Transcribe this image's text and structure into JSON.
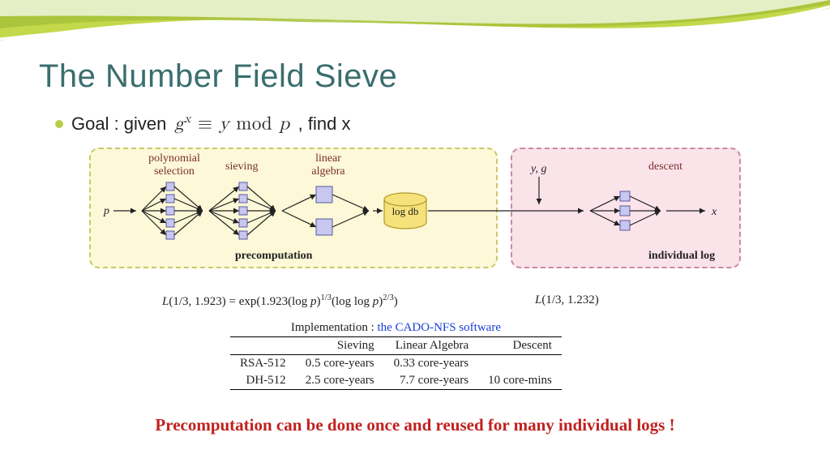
{
  "title": "The Number Field Sieve",
  "bullet": {
    "prefix": "Goal : given",
    "formula_html": "g<span class='sup'>x</span> <span class='op'>≡</span> y <span class='op'>mod</span> p",
    "suffix": ", find x"
  },
  "diagram": {
    "precomputation": {
      "bg": "#fdf8d7",
      "border": "#c9c96a",
      "footer": "precomputation",
      "input_label": "p",
      "stages": [
        {
          "label": "polynomial\nselection",
          "node_count": 5,
          "node_size": 10
        },
        {
          "label": "sieving",
          "node_count": 5,
          "node_size": 10
        },
        {
          "label": "linear\nalgebra",
          "node_count": 2,
          "node_size": 18
        }
      ],
      "db_label": "log db"
    },
    "descent": {
      "bg": "#fbe3ea",
      "border": "#c98a9f",
      "footer": "individual log",
      "label": "descent",
      "input_label": "y, g",
      "output_label": "x",
      "node_count": 3,
      "node_size": 12
    },
    "colors": {
      "node_fill": "#c7c7ef",
      "node_stroke": "#5a5aa0",
      "db_fill": "#f6e27a",
      "db_stroke": "#b19a2a",
      "label_color": "#7a2e2e"
    }
  },
  "complexity": {
    "left": "L(1/3, 1.923) = exp(1.923(log p)^{1/3}(log log p)^{2/3})",
    "left_html": "<i>L</i>(1/3, 1.923) = exp(1.923(log <i>p</i>)<span class='fsup'>1/3</span>(log log <i>p</i>)<span class='fsup'>2/3</span>)",
    "right": "L(1/3, 1.232)",
    "right_html": "<i>L</i>(1/3, 1.232)"
  },
  "table": {
    "caption_prefix": "Implementation : ",
    "caption_link": "the CADO-NFS software",
    "columns": [
      "",
      "Sieving",
      "Linear Algebra",
      "Descent"
    ],
    "rows": [
      [
        "RSA-512",
        "0.5 core-years",
        "0.33 core-years",
        ""
      ],
      [
        "DH-512",
        "2.5 core-years",
        "7.7 core-years",
        "10 core-mins"
      ]
    ]
  },
  "punchline": "Precomputation can be done once and reused for many individual logs !",
  "swoosh_colors": [
    "#c3d84a",
    "#a7c23a",
    "#e3ecb0",
    "#ffffff"
  ]
}
